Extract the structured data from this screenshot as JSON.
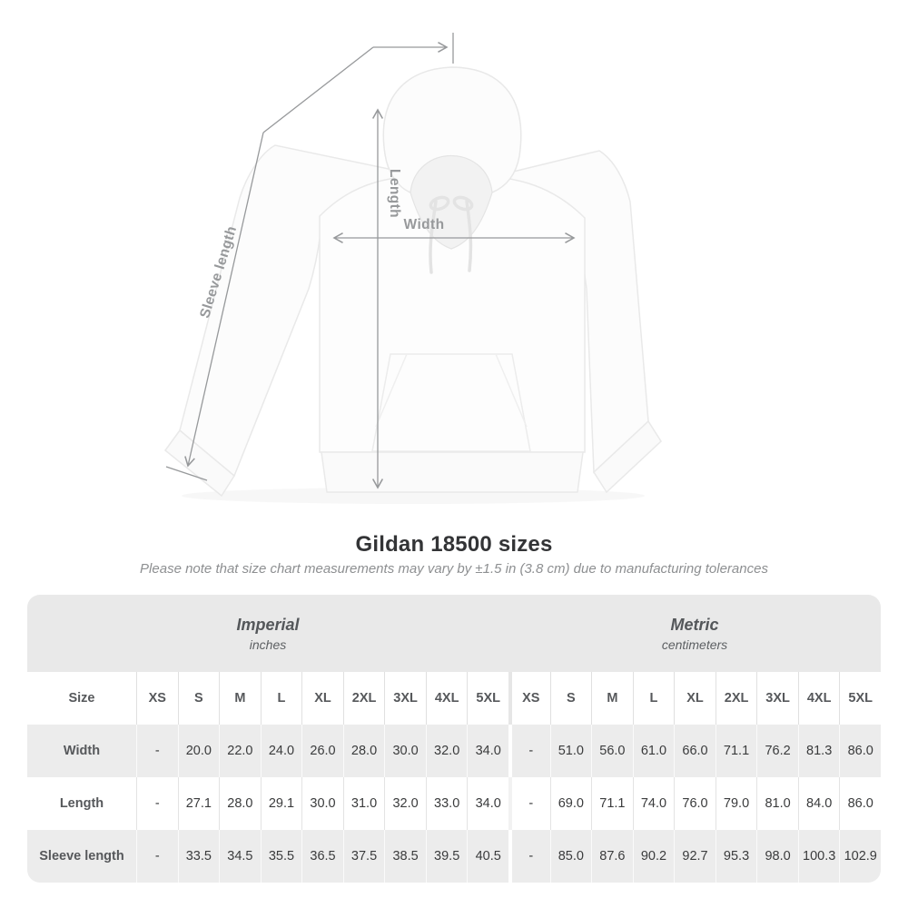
{
  "header": {
    "title": "Gildan 18500 sizes",
    "subtitle": "Please note that size chart measurements may vary by ±1.5 in (3.8 cm) due to manufacturing tolerances"
  },
  "diagram": {
    "width_label": "Width",
    "length_label": "Length",
    "sleeve_label": "Sleeve length",
    "line_color": "#97999b",
    "label_color": "#97999b"
  },
  "table": {
    "corner_label": "Size",
    "groups": [
      {
        "name": "Imperial",
        "unit": "inches"
      },
      {
        "name": "Metric",
        "unit": "centimeters"
      }
    ]
  },
  "chart_data": {
    "type": "table",
    "title": "Gildan 18500 sizes",
    "note": "Measurements may vary by ±1.5 in (3.8 cm) due to manufacturing tolerances",
    "unit_groups": [
      "inches",
      "centimeters"
    ],
    "sizes": [
      "XS",
      "S",
      "M",
      "L",
      "XL",
      "2XL",
      "3XL",
      "4XL",
      "5XL"
    ],
    "rows": [
      {
        "label": "Width",
        "imperial": [
          "-",
          "20.0",
          "22.0",
          "24.0",
          "26.0",
          "28.0",
          "30.0",
          "32.0",
          "34.0"
        ],
        "metric": [
          "-",
          "51.0",
          "56.0",
          "61.0",
          "66.0",
          "71.1",
          "76.2",
          "81.3",
          "86.0"
        ]
      },
      {
        "label": "Length",
        "imperial": [
          "-",
          "27.1",
          "28.0",
          "29.1",
          "30.0",
          "31.0",
          "32.0",
          "33.0",
          "34.0"
        ],
        "metric": [
          "-",
          "69.0",
          "71.1",
          "74.0",
          "76.0",
          "79.0",
          "81.0",
          "84.0",
          "86.0"
        ]
      },
      {
        "label": "Sleeve length",
        "imperial": [
          "-",
          "33.5",
          "34.5",
          "35.5",
          "36.5",
          "37.5",
          "38.5",
          "39.5",
          "40.5"
        ],
        "metric": [
          "-",
          "85.0",
          "87.6",
          "90.2",
          "92.7",
          "95.3",
          "98.0",
          "100.3",
          "102.9"
        ]
      }
    ]
  },
  "colors": {
    "band_bg": "#e9e9e9",
    "row_alt_bg": "#ececec",
    "title_text": "#333436",
    "subtitle_text": "#8d8f91",
    "label_text": "#56585b",
    "value_text": "#3a3b3c",
    "measure_line": "#97999b"
  }
}
